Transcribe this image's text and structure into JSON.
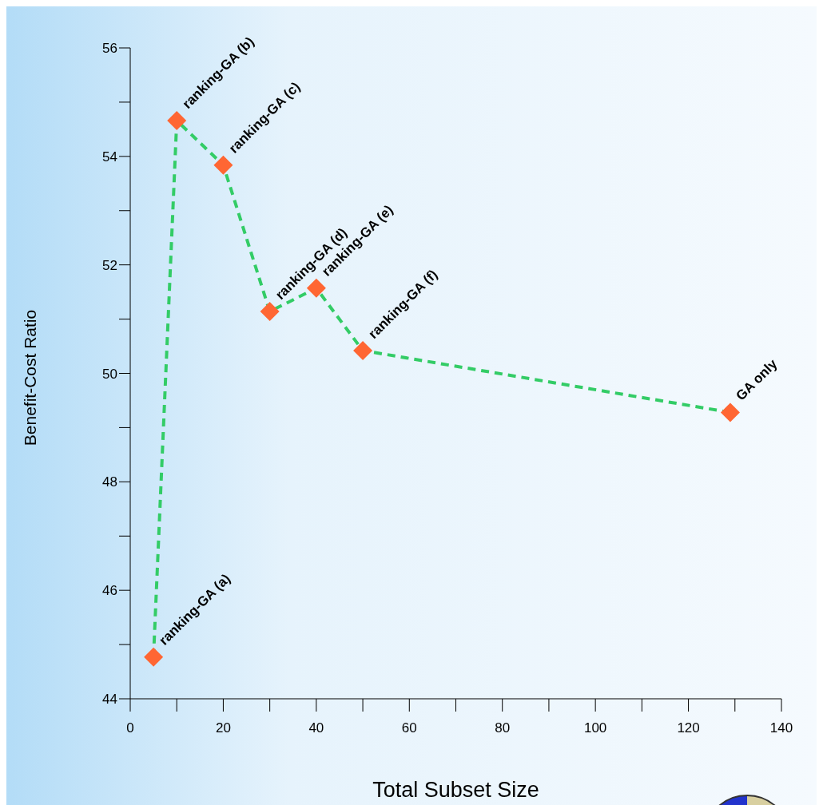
{
  "chart_data": {
    "type": "line",
    "xlabel": "Total Subset Size",
    "ylabel": "Benefit-Cost Ratio",
    "x": [
      5,
      10,
      20,
      30,
      40,
      50,
      129
    ],
    "series": [
      {
        "color": "#33cc66",
        "values": [
          44.77,
          54.66,
          53.84,
          51.14,
          51.57,
          50.42,
          49.28
        ],
        "colors": [
          "#ff6633",
          "#ff6633",
          "#ff6633",
          "#ff6633",
          "#ff6633",
          "#ff6633",
          "#ff6633"
        ]
      }
    ],
    "marker": "diamond",
    "line_style": "dashed",
    "grid": false,
    "legend": false,
    "xlim": [
      0,
      140
    ],
    "xticks": [
      0,
      {
        "value": 10,
        "label": null
      },
      20,
      {
        "value": 30,
        "label": null
      },
      40,
      {
        "value": 50,
        "label": null
      },
      60,
      {
        "value": 70,
        "label": null
      },
      80,
      {
        "value": 90,
        "label": null
      },
      100,
      {
        "value": 110,
        "label": null
      },
      120,
      {
        "value": 130,
        "label": null
      },
      140
    ],
    "ylim": [
      44,
      56
    ],
    "yticks": [
      44,
      {
        "value": 45,
        "label": null
      },
      46,
      {
        "value": 47,
        "label": null
      },
      48,
      {
        "value": 49,
        "label": null
      },
      50,
      {
        "value": 51,
        "label": null
      },
      52,
      {
        "value": 53,
        "label": null
      },
      54,
      {
        "value": 55,
        "label": null
      },
      56
    ],
    "annotations": [
      {
        "text": "ranking-GA (a)",
        "x": 5,
        "y": 44.77
      },
      {
        "text": "ranking-GA (b)",
        "x": 10,
        "y": 54.66
      },
      {
        "text": "ranking-GA (c)",
        "x": 20,
        "y": 53.84
      },
      {
        "text": "ranking-GA (d)",
        "x": 30,
        "y": 51.14
      },
      {
        "text": "ranking-GA (e)",
        "x": 40,
        "y": 51.57
      },
      {
        "text": "ranking-GA (f)",
        "x": 50,
        "y": 50.42
      },
      {
        "text": "GA only",
        "x": 129,
        "y": 49.28
      }
    ]
  }
}
